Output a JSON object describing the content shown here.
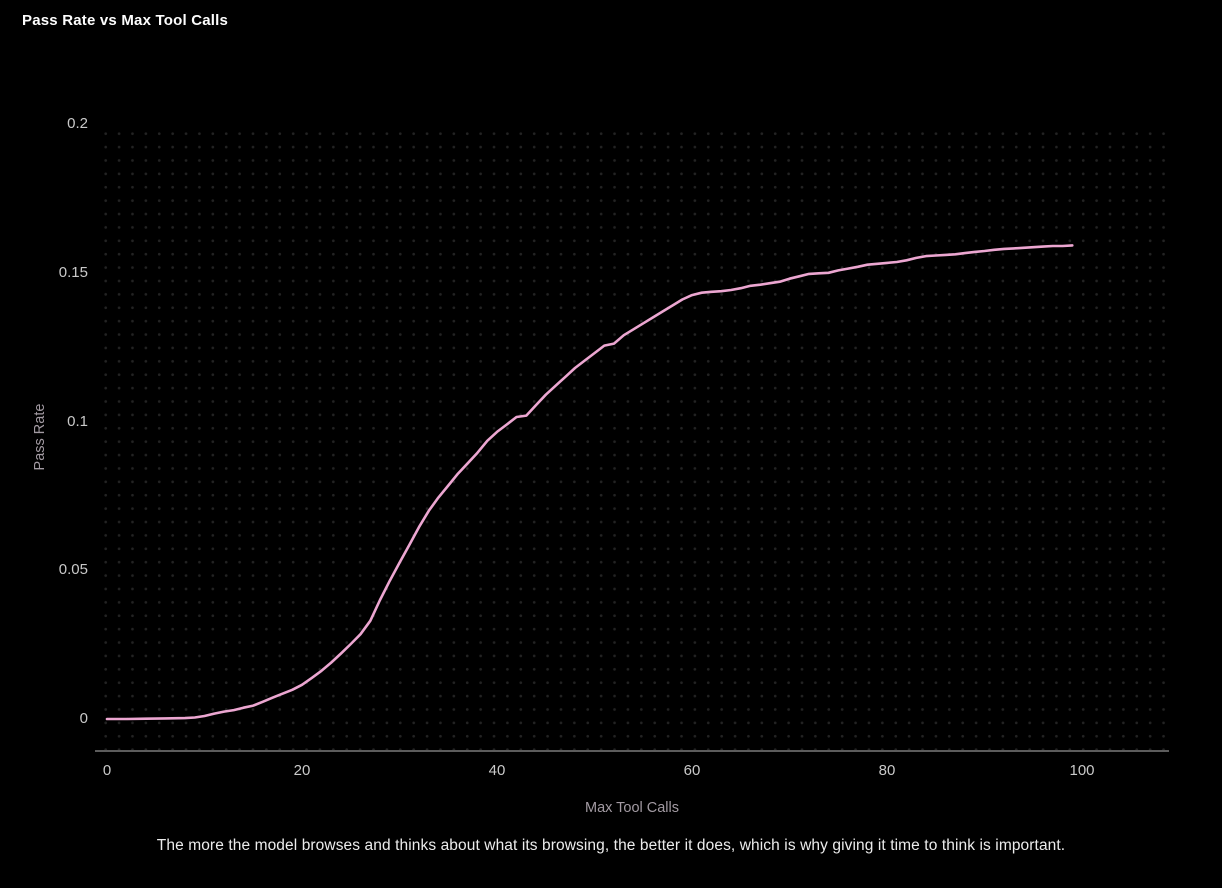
{
  "header": {
    "title": "Pass Rate vs Max Tool Calls"
  },
  "caption": {
    "text": "The more the model browses and thinks about what its browsing, the better it does, which is why giving it time to think is important."
  },
  "chart_data": {
    "type": "line",
    "title": "Pass Rate vs Max Tool Calls",
    "xlabel": "Max Tool Calls",
    "ylabel": "Pass Rate",
    "xlim": [
      0,
      110
    ],
    "ylim": [
      0,
      0.2
    ],
    "x_ticks": [
      "0",
      "20",
      "40",
      "60",
      "80",
      "100"
    ],
    "x_tick_values": [
      0,
      20,
      40,
      60,
      80,
      100
    ],
    "y_ticks": [
      "0",
      "0.05",
      "0.1",
      "0.15",
      "0.2"
    ],
    "y_tick_values": [
      0,
      0.05,
      0.1,
      0.15,
      0.2
    ],
    "grid": "dot-pattern",
    "legend_position": "none",
    "background_color": "#000000",
    "line_color": "#eca6d1",
    "series": [
      {
        "name": "Pass Rate",
        "x": [
          0,
          2,
          4,
          6,
          8,
          9,
          10,
          11,
          12,
          13,
          14,
          15,
          16,
          17,
          18,
          19,
          20,
          21,
          22,
          23,
          24,
          25,
          26,
          27,
          28,
          29,
          30,
          31,
          32,
          33,
          34,
          35,
          36,
          37,
          38,
          39,
          40,
          41,
          42,
          43,
          44,
          45,
          46,
          47,
          48,
          49,
          50,
          51,
          52,
          53,
          54,
          55,
          56,
          57,
          58,
          59,
          60,
          61,
          62,
          63,
          64,
          65,
          66,
          67,
          68,
          69,
          70,
          71,
          72,
          73,
          74,
          75,
          76,
          77,
          78,
          79,
          80,
          81,
          82,
          83,
          84,
          85,
          86,
          87,
          88,
          89,
          90,
          91,
          92,
          93,
          94,
          95,
          96,
          97,
          98,
          99
        ],
        "y": [
          0.0,
          0.0,
          0.0001,
          0.0002,
          0.0003,
          0.0005,
          0.001,
          0.0018,
          0.0025,
          0.003,
          0.0038,
          0.0045,
          0.0058,
          0.0072,
          0.0085,
          0.0098,
          0.0115,
          0.0138,
          0.0162,
          0.019,
          0.022,
          0.0252,
          0.0285,
          0.033,
          0.04,
          0.0465,
          0.0525,
          0.0585,
          0.0645,
          0.07,
          0.0745,
          0.0785,
          0.0825,
          0.086,
          0.0895,
          0.0935,
          0.0965,
          0.099,
          0.1015,
          0.102,
          0.1055,
          0.109,
          0.112,
          0.115,
          0.118,
          0.1205,
          0.123,
          0.1255,
          0.1262,
          0.129,
          0.131,
          0.133,
          0.135,
          0.137,
          0.139,
          0.141,
          0.1425,
          0.1433,
          0.1436,
          0.1438,
          0.1442,
          0.1448,
          0.1456,
          0.146,
          0.1465,
          0.147,
          0.148,
          0.1488,
          0.1496,
          0.1498,
          0.15,
          0.1508,
          0.1514,
          0.152,
          0.1527,
          0.153,
          0.1533,
          0.1536,
          0.1542,
          0.155,
          0.1556,
          0.1558,
          0.156,
          0.1562,
          0.1566,
          0.157,
          0.1573,
          0.1577,
          0.158,
          0.1582,
          0.1584,
          0.1586,
          0.1588,
          0.159,
          0.159,
          0.1592
        ]
      }
    ]
  }
}
